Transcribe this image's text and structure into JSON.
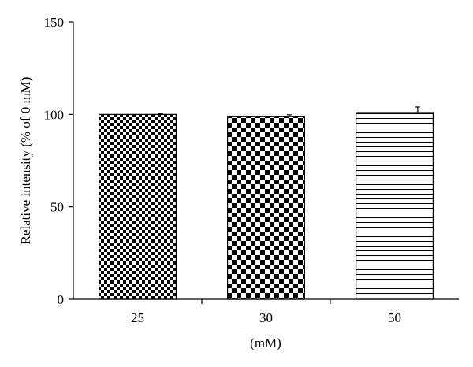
{
  "chart_data": {
    "type": "bar",
    "categories": [
      "25",
      "30",
      "50"
    ],
    "values": [
      100,
      99,
      101
    ],
    "errors": [
      0.3,
      0.8,
      3
    ],
    "patterns": [
      "fine-checker",
      "coarse-checker",
      "horizontal-lines"
    ],
    "xlabel": "(mM)",
    "ylabel": "Relative intensity (% of 0 mM)",
    "ylim": [
      0,
      150
    ],
    "yticks": [
      0,
      50,
      100,
      150
    ],
    "grid": false,
    "legend": "none",
    "colors": {
      "bar_fill": "#000000",
      "bar_background": "#ffffff",
      "axis": "#000000"
    }
  }
}
